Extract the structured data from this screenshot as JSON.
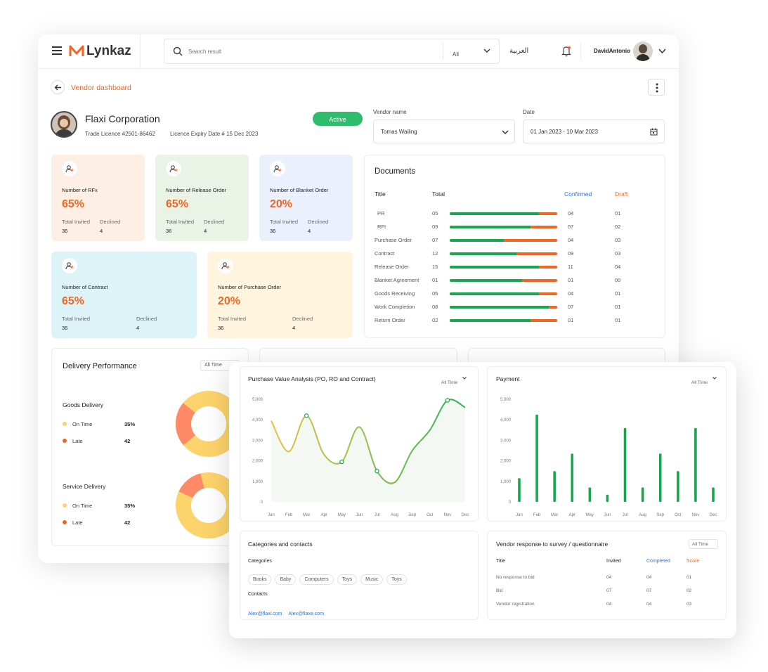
{
  "header": {
    "brand": "Lynkaz",
    "search_placeholder": "Search result",
    "filter_value": "All",
    "language": "العربية",
    "username": "DavidAntonio"
  },
  "page": {
    "back_label": "Vendor dashboard",
    "company_name": "Flaxi Corporation",
    "trade_licence": "Trade Licence #2501-86462",
    "licence_expiry": "Licence Expiry Date  # 15 Dec 2023",
    "status": "Active",
    "vendor_name_label": "Vendor name",
    "vendor_name_value": "Tomas Wailing",
    "date_label": "Date",
    "date_value": "01 Jan 2023 - 10 Mar 2023"
  },
  "stats": [
    {
      "title": "Number of RFx",
      "percent": "65%",
      "invited_label": "Total Invited",
      "invited": "36",
      "declined_label": "Declined",
      "declined": "4",
      "bg": "#fdefe4"
    },
    {
      "title": "Number of Release Order",
      "percent": "65%",
      "invited_label": "Total Invited",
      "invited": "36",
      "declined_label": "Declined",
      "declined": "4",
      "bg": "#e9f3e6"
    },
    {
      "title": "Number of Blanket Order",
      "percent": "20%",
      "invited_label": "Total Invited",
      "invited": "36",
      "declined_label": "Declined",
      "declined": "4",
      "bg": "#eaf0fc"
    },
    {
      "title": "Number of Contract",
      "percent": "65%",
      "invited_label": "Total Invited",
      "invited": "36",
      "declined_label": "Declined",
      "declined": "4",
      "bg": "#dcf3f8"
    },
    {
      "title": "Number of Purchase Order",
      "percent": "20%",
      "invited_label": "Total Invited",
      "invited": "36",
      "declined_label": "Declined",
      "declined": "4",
      "bg": "#fff5de"
    }
  ],
  "documents": {
    "title": "Documents",
    "col_title": "Title",
    "col_total": "Total",
    "col_confirmed": "Confirmed",
    "col_draft": "Draft",
    "rows": [
      {
        "title": "PR",
        "total": "05",
        "confirmed": "04",
        "draft": "01",
        "ratio": 0.83
      },
      {
        "title": "RFI",
        "total": "09",
        "confirmed": "07",
        "draft": "02",
        "ratio": 0.75
      },
      {
        "title": "Purchase Order",
        "total": "07",
        "confirmed": "04",
        "draft": "03",
        "ratio": 0.5
      },
      {
        "title": "Contract",
        "total": "12",
        "confirmed": "09",
        "draft": "03",
        "ratio": 0.62
      },
      {
        "title": "Release Order",
        "total": "15",
        "confirmed": "11",
        "draft": "04",
        "ratio": 0.83
      },
      {
        "title": "Blanket Agreement",
        "total": "01",
        "confirmed": "01",
        "draft": "00",
        "ratio": 0.67
      },
      {
        "title": "Goods Receiving",
        "total": "05",
        "confirmed": "04",
        "draft": "01",
        "ratio": 0.83
      },
      {
        "title": "Work Completion",
        "total": "08",
        "confirmed": "07",
        "draft": "01",
        "ratio": 0.92
      },
      {
        "title": "Return Order",
        "total": "02",
        "confirmed": "01",
        "draft": "01",
        "ratio": 0.75
      }
    ]
  },
  "delivery": {
    "title": "Delivery Performance",
    "filter": "All Time",
    "goods": {
      "label": "Goods Delivery",
      "on_time_label": "On Time",
      "on_time": "35%",
      "late_label": "Late",
      "late": "42",
      "on_time_fraction": 0.78
    },
    "service": {
      "label": "Service Delivery",
      "on_time_label": "On Time",
      "on_time": "35%",
      "late_label": "Late",
      "late": "42",
      "on_time_fraction": 0.86
    }
  },
  "colors": {
    "accent": "#f26522",
    "green": "#1aa550",
    "blue": "#2d74d6",
    "active": "#2ebc6d",
    "yellow": "#fdd36b"
  },
  "purchase_chart": {
    "title": "Purchase Value Analysis (PO, RO and Contract)",
    "filter": "All Time"
  },
  "payment_chart": {
    "title": "Payment",
    "filter": "All Time"
  },
  "chart_data": [
    {
      "type": "line",
      "title": "Purchase Value Analysis (PO, RO and Contract)",
      "x": [
        "Jan",
        "Feb",
        "Mar",
        "Apr",
        "May",
        "Jun",
        "Jul",
        "Aug",
        "Sep",
        "Oct",
        "Nov",
        "Dec"
      ],
      "y_ticks": [
        "5,000",
        "4,000",
        "3,000",
        "2,000",
        "1,000",
        "0"
      ],
      "ylim": [
        0,
        5000
      ],
      "series": [
        {
          "values": [
            3950,
            2450,
            4200,
            2300,
            1950,
            3650,
            1500,
            950,
            2500,
            3500,
            4950,
            4600
          ]
        }
      ],
      "grid": false
    },
    {
      "type": "bar",
      "title": "Payment",
      "categories": [
        "Jan",
        "Feb",
        "Mar",
        "Apr",
        "May",
        "Jun",
        "Jul",
        "Aug",
        "Sep",
        "Oct",
        "Nov",
        "Dec"
      ],
      "values": [
        1150,
        4250,
        1500,
        2350,
        700,
        350,
        3600,
        700,
        2350,
        1500,
        3600,
        700
      ],
      "y_ticks": [
        "5,000",
        "4,000",
        "3,000",
        "2,000",
        "1,000",
        "0"
      ],
      "ylim": [
        0,
        5000
      ]
    }
  ],
  "categories_panel": {
    "title": "Categories and contacts",
    "categories_label": "Categories",
    "categories": [
      "Books",
      "Baby",
      "Computers",
      "Toys",
      "Music",
      "Toys"
    ],
    "contacts_label": "Contacts",
    "contacts": [
      "Alex@flaxi.com",
      "Alex@flaxe.com"
    ]
  },
  "survey": {
    "title": "Vendor response to survey / questionnaire",
    "filter": "All Time",
    "col_title": "Title",
    "col_invited": "Invited",
    "col_completed": "Completed",
    "col_score": "Score",
    "rows": [
      {
        "title": "No response to bid",
        "invited": "04",
        "completed": "04",
        "score": "01"
      },
      {
        "title": "Bid",
        "invited": "07",
        "completed": "07",
        "score": "02"
      },
      {
        "title": "Vendor registration",
        "invited": "04",
        "completed": "04",
        "score": "03"
      }
    ]
  }
}
